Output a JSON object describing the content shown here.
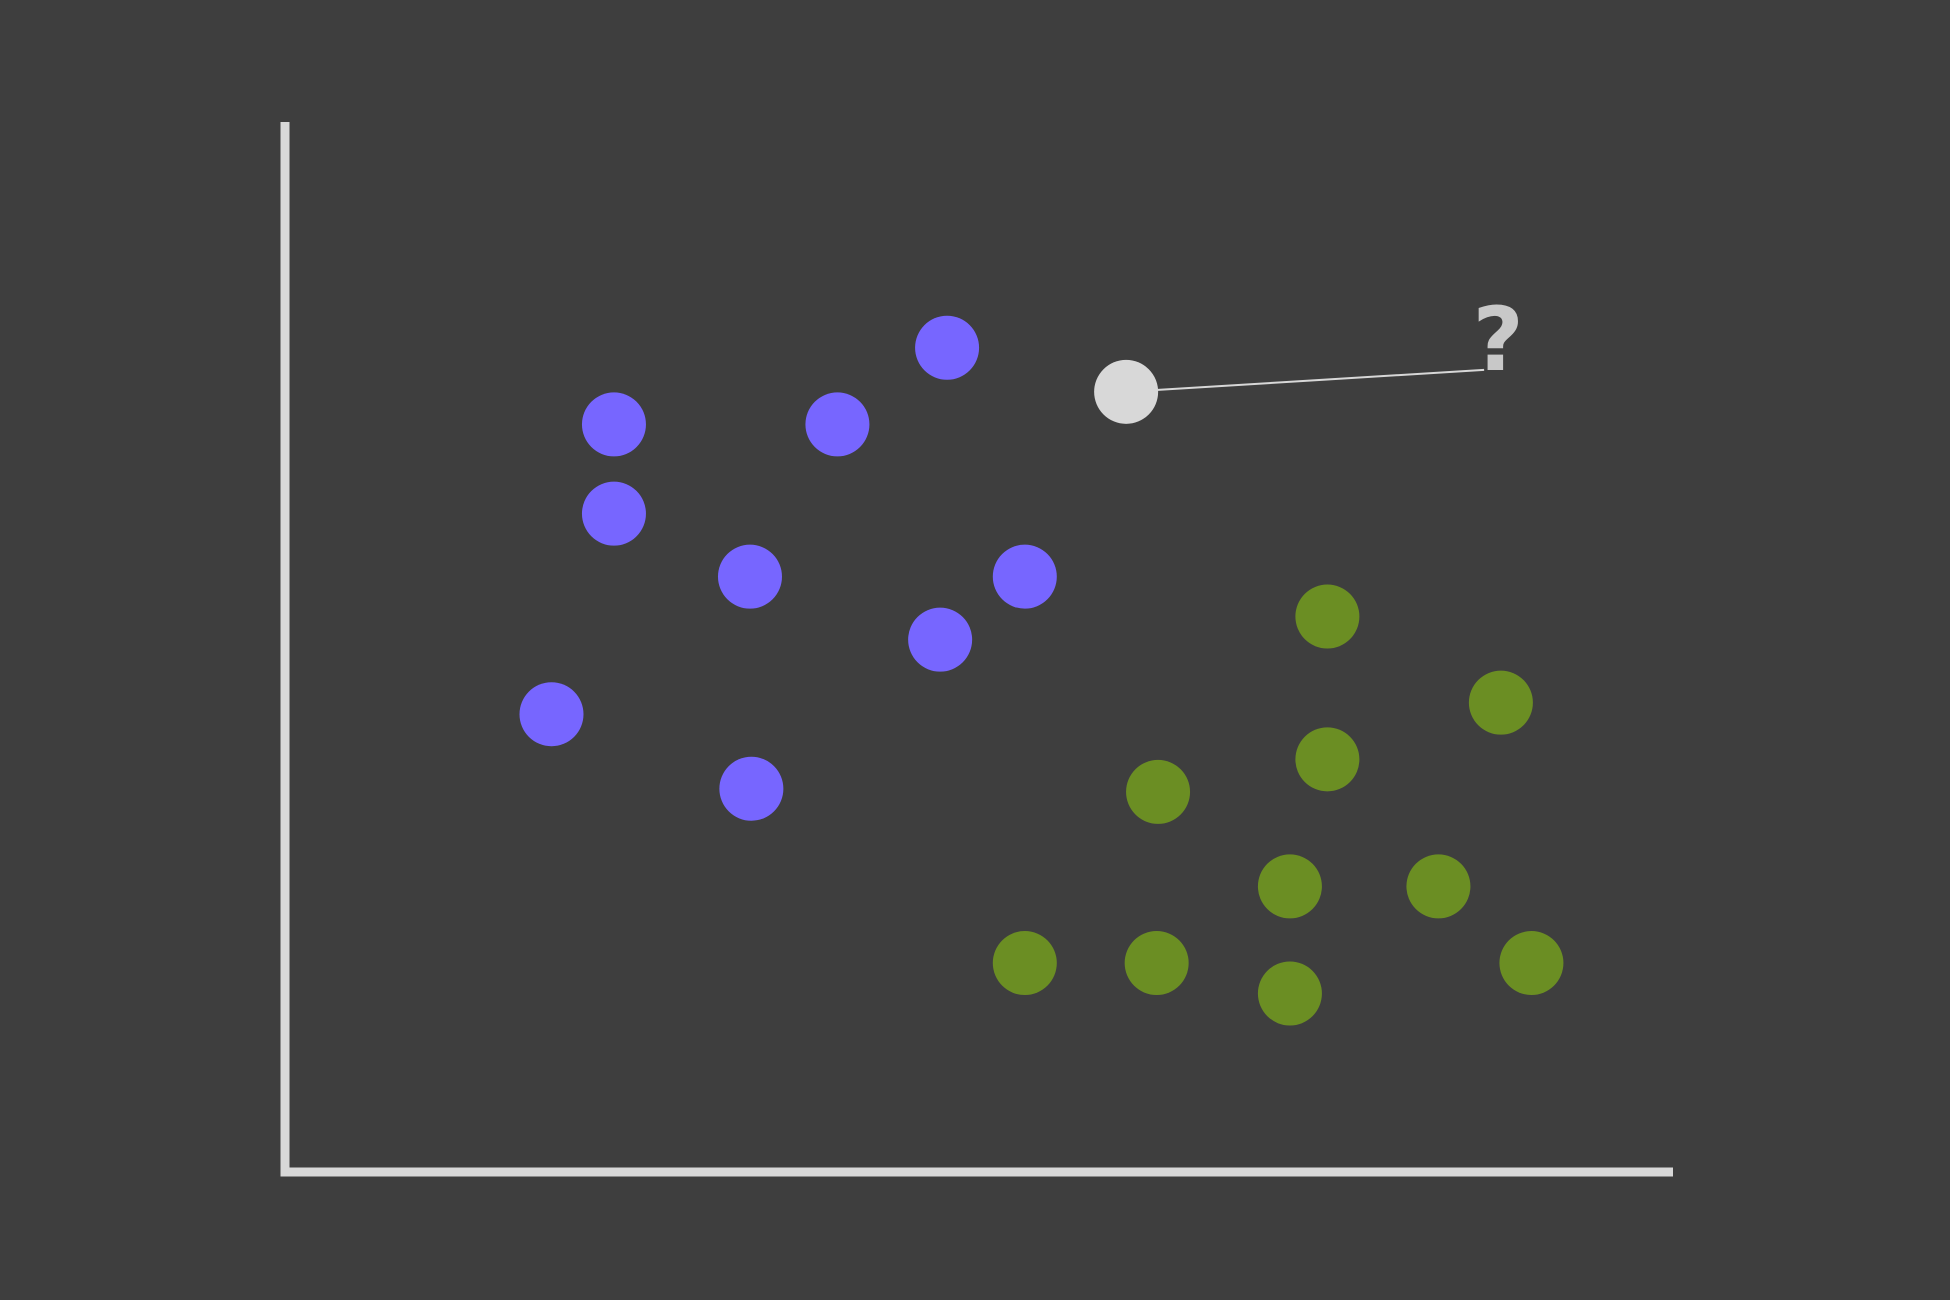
{
  "chart_data": {
    "type": "scatter",
    "title": "",
    "xlabel": "",
    "ylabel": "",
    "xlim": [
      0,
      100
    ],
    "ylim": [
      0,
      100
    ],
    "grid": false,
    "legend": "none",
    "colors": {
      "background": "#3e3e3e",
      "axis": "#d8d8d8",
      "connector": "#d8d8d8",
      "annotation": "#c8c8c8"
    },
    "series": [
      {
        "color": "#7766ff",
        "points": [
          {
            "x": 23.7,
            "y": 71.2
          },
          {
            "x": 39.8,
            "y": 71.2
          },
          {
            "x": 47.7,
            "y": 78.5
          },
          {
            "x": 23.7,
            "y": 62.7
          },
          {
            "x": 33.5,
            "y": 56.7
          },
          {
            "x": 53.3,
            "y": 56.7
          },
          {
            "x": 47.2,
            "y": 50.7
          },
          {
            "x": 19.2,
            "y": 43.6
          },
          {
            "x": 33.6,
            "y": 36.5
          }
        ]
      },
      {
        "color": "#6b8e23",
        "points": [
          {
            "x": 75.1,
            "y": 52.9
          },
          {
            "x": 87.6,
            "y": 44.7
          },
          {
            "x": 75.1,
            "y": 39.3
          },
          {
            "x": 62.9,
            "y": 36.2
          },
          {
            "x": 72.4,
            "y": 27.2
          },
          {
            "x": 83.1,
            "y": 27.2
          },
          {
            "x": 53.3,
            "y": 19.9
          },
          {
            "x": 62.8,
            "y": 19.9
          },
          {
            "x": 72.4,
            "y": 17.0
          },
          {
            "x": 89.8,
            "y": 19.9
          }
        ]
      },
      {
        "color": "#d8d8d8",
        "points": [
          {
            "x": 60.6,
            "y": 74.3
          }
        ]
      }
    ],
    "annotations": [
      {
        "text": "?",
        "x": 87.4,
        "y": 80.2
      }
    ]
  }
}
